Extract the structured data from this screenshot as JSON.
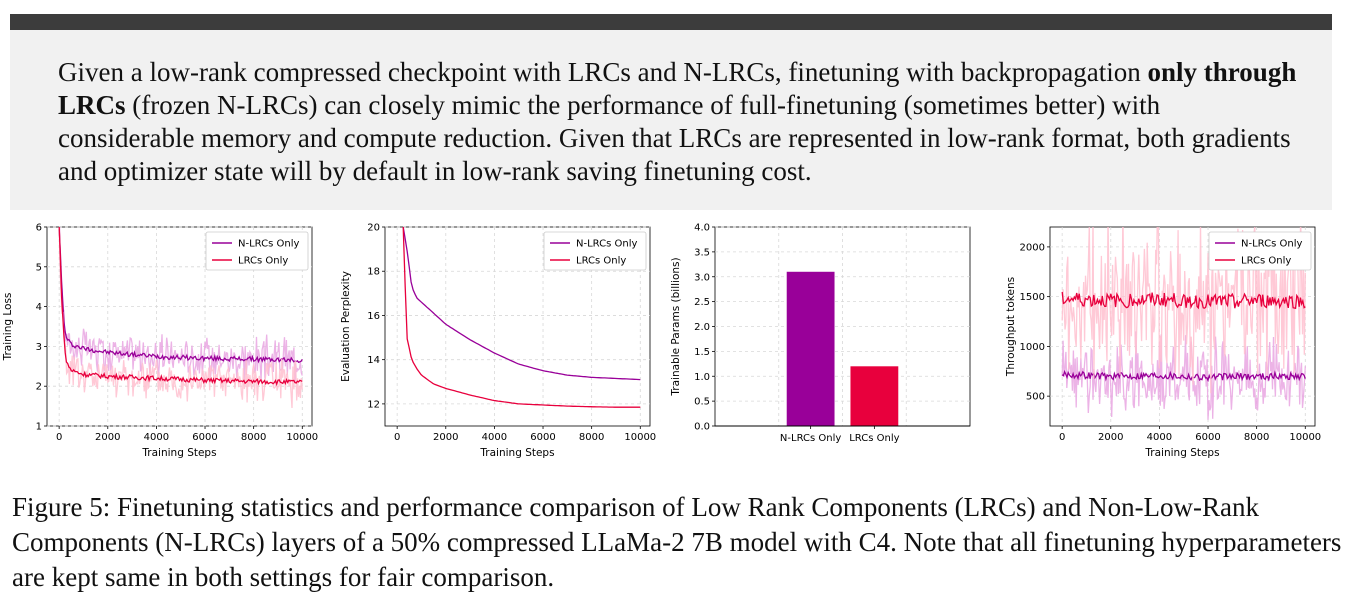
{
  "callout": {
    "part1": "Given a low-rank compressed checkpoint with LRCs and N-LRCs, finetuning with backpropagation ",
    "bold": "only through LRCs",
    "part2": " (frozen N-LRCs) can closely mimic the performance of full-finetuning (sometimes better) with considerable memory and compute reduction. Given that LRCs are represented in low-rank format, both gradients and optimizer state will by default in low-rank saving finetuning cost."
  },
  "caption": "Figure 5: Finetuning statistics and performance comparison of Low Rank Components (LRCs) and Non-Low-Rank Components (N-LRCs) layers of a 50% compressed LLaMa-2 7B model with C4. Note that all finetuning hyperparameters are kept same in both settings for fair comparison.",
  "colors": {
    "nlrc": "#990099",
    "lrc": "#e8003d",
    "nlrc_band": "#e9a6e2",
    "lrc_band": "#ffc0cf"
  },
  "chart_data": [
    {
      "type": "line",
      "xlabel": "Training Steps",
      "ylabel": "Training Loss",
      "xlim": [
        -500,
        10400
      ],
      "ylim": [
        1,
        6
      ],
      "xticks": [
        "0",
        "2000",
        "4000",
        "6000",
        "8000",
        "10000"
      ],
      "yticks": [
        "1",
        "2",
        "3",
        "4",
        "5",
        "6"
      ],
      "legend_position": "top-right",
      "grid": true,
      "x": [
        0,
        100,
        200,
        300,
        500,
        1000,
        2000,
        4000,
        6000,
        8000,
        10000
      ],
      "series": [
        {
          "name": "N-LRCs Only",
          "values": [
            6.0,
            4.6,
            3.6,
            3.2,
            3.05,
            2.95,
            2.85,
            2.75,
            2.7,
            2.68,
            2.65
          ]
        },
        {
          "name": "LRCs Only",
          "values": [
            6.0,
            4.3,
            3.2,
            2.6,
            2.4,
            2.3,
            2.25,
            2.2,
            2.15,
            2.12,
            2.1
          ]
        }
      ]
    },
    {
      "type": "line",
      "xlabel": "Training Steps",
      "ylabel": "Evaluation Perplexity",
      "xlim": [
        -500,
        10400
      ],
      "ylim": [
        11,
        20
      ],
      "xticks": [
        "0",
        "2000",
        "4000",
        "6000",
        "8000",
        "10000"
      ],
      "yticks": [
        "12",
        "14",
        "16",
        "18",
        "20"
      ],
      "legend_position": "top-right",
      "grid": true,
      "x": [
        250,
        400,
        600,
        800,
        1000,
        1500,
        2000,
        3000,
        4000,
        5000,
        6000,
        7000,
        8000,
        9000,
        10000
      ],
      "series": [
        {
          "name": "N-LRCs Only",
          "values": [
            20.0,
            19.0,
            17.3,
            16.8,
            16.6,
            16.1,
            15.6,
            14.9,
            14.3,
            13.8,
            13.5,
            13.3,
            13.2,
            13.15,
            13.1
          ]
        },
        {
          "name": "LRCs Only",
          "values": [
            20.0,
            15.0,
            14.0,
            13.6,
            13.3,
            12.9,
            12.7,
            12.4,
            12.15,
            12.0,
            11.95,
            11.9,
            11.87,
            11.85,
            11.85
          ]
        }
      ]
    },
    {
      "type": "bar",
      "ylabel": "Trainable Params (billions)",
      "ylim": [
        0,
        4.0
      ],
      "yticks": [
        "0.0",
        "0.5",
        "1.0",
        "1.5",
        "2.0",
        "2.5",
        "3.0",
        "3.5",
        "4.0"
      ],
      "categories": [
        "N-LRCs Only",
        "LRCs Only"
      ],
      "values": [
        3.1,
        1.2
      ],
      "grid": true
    },
    {
      "type": "line",
      "xlabel": "Training Steps",
      "ylabel": "Throughput tokens",
      "xlim": [
        -500,
        10400
      ],
      "ylim": [
        200,
        2200
      ],
      "xticks": [
        "0",
        "2000",
        "4000",
        "6000",
        "8000",
        "10000"
      ],
      "yticks": [
        "500",
        "1000",
        "1500",
        "2000"
      ],
      "legend_position": "top-right",
      "grid": true,
      "x": [
        0,
        2000,
        4000,
        6000,
        8000,
        10000
      ],
      "series": [
        {
          "name": "N-LRCs Only",
          "values": [
            720,
            700,
            710,
            690,
            700,
            700
          ]
        },
        {
          "name": "LRCs Only",
          "values": [
            1480,
            1460,
            1470,
            1450,
            1460,
            1450
          ]
        }
      ]
    }
  ]
}
